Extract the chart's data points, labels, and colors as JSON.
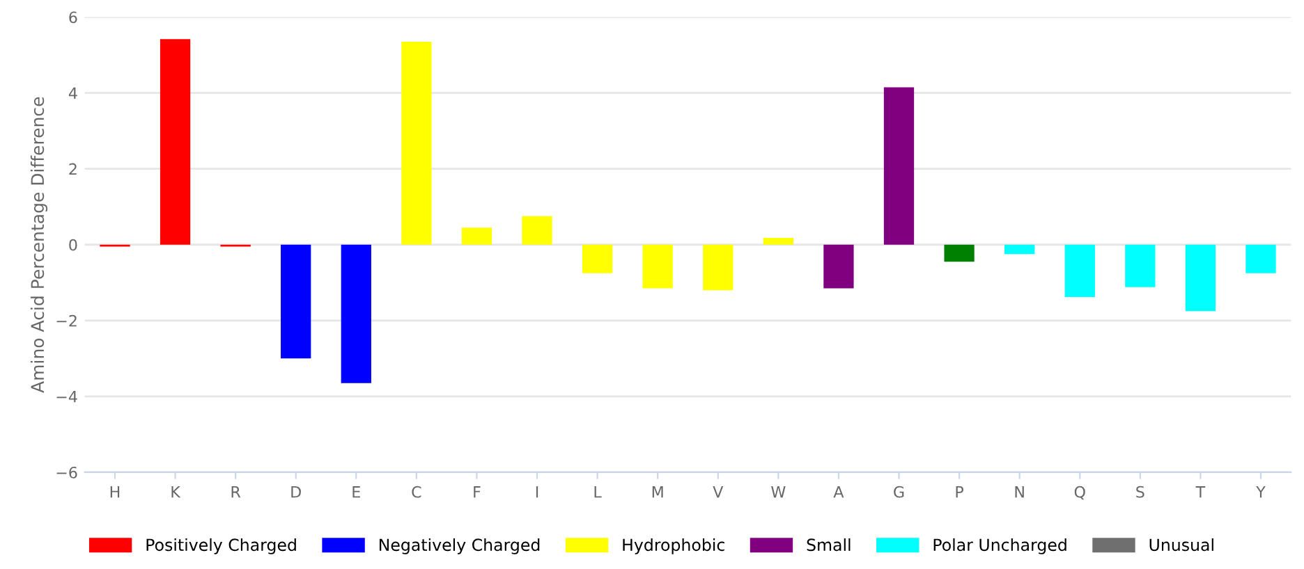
{
  "chart_data": {
    "type": "bar",
    "ylabel": "Amino Acid Percentage Difference",
    "categories": [
      "H",
      "K",
      "R",
      "D",
      "E",
      "C",
      "F",
      "I",
      "L",
      "M",
      "V",
      "W",
      "A",
      "G",
      "P",
      "N",
      "Q",
      "S",
      "T",
      "Y"
    ],
    "series": [
      {
        "name": "Positively Charged",
        "color": "#ff0000",
        "values": [
          -0.05,
          5.42,
          -0.05,
          null,
          null,
          null,
          null,
          null,
          null,
          null,
          null,
          null,
          null,
          null,
          null,
          null,
          null,
          null,
          null,
          null
        ]
      },
      {
        "name": "Negatively Charged",
        "color": "#0000ff",
        "values": [
          null,
          null,
          null,
          -3.0,
          -3.65,
          null,
          null,
          null,
          null,
          null,
          null,
          null,
          null,
          null,
          null,
          null,
          null,
          null,
          null,
          null
        ]
      },
      {
        "name": "Hydrophobic",
        "color": "#ffff00",
        "values": [
          null,
          null,
          null,
          null,
          null,
          5.35,
          0.45,
          0.75,
          -0.75,
          -1.15,
          -1.2,
          0.18,
          null,
          null,
          null,
          null,
          null,
          null,
          null,
          null
        ]
      },
      {
        "name": "Small",
        "color": "#800080",
        "values": [
          null,
          null,
          null,
          null,
          null,
          null,
          null,
          null,
          null,
          null,
          null,
          null,
          -1.15,
          4.15,
          null,
          null,
          null,
          null,
          null,
          null
        ]
      },
      {
        "color": "#008000",
        "values": [
          null,
          null,
          null,
          null,
          null,
          null,
          null,
          null,
          null,
          null,
          null,
          null,
          null,
          null,
          -0.45,
          null,
          null,
          null,
          null,
          null
        ]
      },
      {
        "name": "Polar Uncharged",
        "color": "#00ffff",
        "values": [
          null,
          null,
          null,
          null,
          null,
          null,
          null,
          null,
          null,
          null,
          null,
          null,
          null,
          null,
          null,
          -0.25,
          -1.38,
          -1.12,
          -1.75,
          -0.75
        ]
      },
      {
        "name": "Unusual",
        "color": "#6f6f6f",
        "values": [
          null,
          null,
          null,
          null,
          null,
          null,
          null,
          null,
          null,
          null,
          null,
          null,
          null,
          null,
          null,
          null,
          null,
          null,
          null,
          null
        ]
      }
    ],
    "ylim": [
      -6,
      6
    ],
    "yticks": [
      {
        "value": -6,
        "label": "−6"
      },
      {
        "value": -4,
        "label": "−4"
      },
      {
        "value": -2,
        "label": "−2"
      },
      0,
      2,
      4,
      6
    ],
    "grid": "y",
    "legend": "bottom"
  }
}
